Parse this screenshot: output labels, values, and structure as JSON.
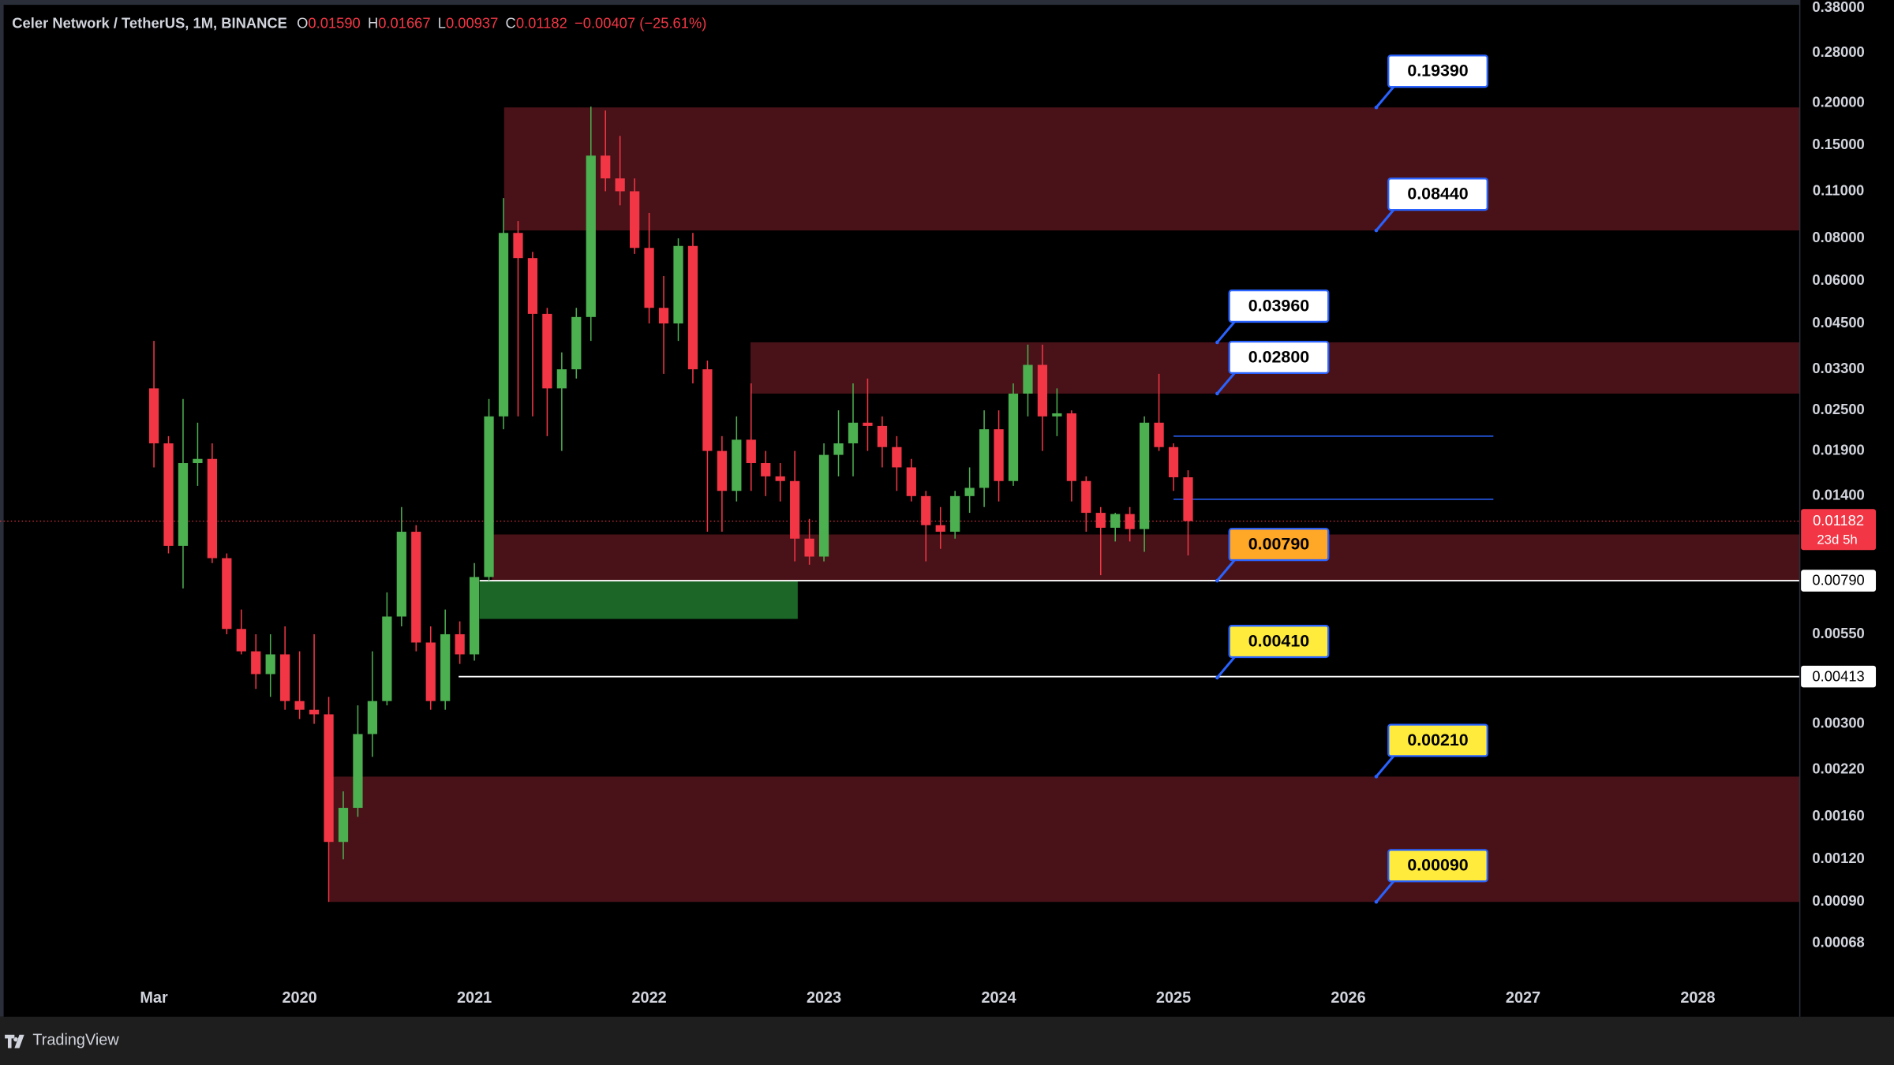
{
  "chart_data": {
    "type": "candlestick",
    "title": "Celer Network / TetherUS, 1M, BINANCE",
    "ohlc_header": [
      {
        "key": "O",
        "value": "0.01590"
      },
      {
        "key": "H",
        "value": "0.01667"
      },
      {
        "key": "L",
        "value": "0.00937"
      },
      {
        "key": "C",
        "value": "0.01182"
      }
    ],
    "change": "−0.00407 (−25.61%)",
    "up_color": "#4caf50",
    "down_color": "#f23645",
    "x": [
      2019.1667,
      2019.25,
      2019.3333,
      2019.4167,
      2019.5,
      2019.5833,
      2019.6667,
      2019.75,
      2019.8333,
      2019.9167,
      2020.0,
      2020.0833,
      2020.1667,
      2020.25,
      2020.3333,
      2020.4167,
      2020.5,
      2020.5833,
      2020.6667,
      2020.75,
      2020.8333,
      2020.9167,
      2021.0,
      2021.0833,
      2021.1667,
      2021.25,
      2021.3333,
      2021.4167,
      2021.5,
      2021.5833,
      2021.6667,
      2021.75,
      2021.8333,
      2021.9167,
      2022.0,
      2022.0833,
      2022.1667,
      2022.25,
      2022.3333,
      2022.4167,
      2022.5,
      2022.5833,
      2022.6667,
      2022.75,
      2022.8333,
      2022.9167,
      2023.0,
      2023.0833,
      2023.1667,
      2023.25,
      2023.3333,
      2023.4167,
      2023.5,
      2023.5833,
      2023.6667,
      2023.75,
      2023.8333,
      2023.9167,
      2024.0,
      2024.0833,
      2024.1667,
      2024.25,
      2024.3333,
      2024.4167,
      2024.5,
      2024.5833,
      2024.6667,
      2024.75,
      2024.8333,
      2024.9167,
      2025.0,
      2025.0833
    ],
    "open": [
      0.029,
      0.02,
      0.01,
      0.0175,
      0.018,
      0.0092,
      0.0057,
      0.0049,
      0.0042,
      0.0048,
      0.0035,
      0.0033,
      0.0032,
      0.00135,
      0.0017,
      0.0028,
      0.0035,
      0.0062,
      0.011,
      0.0052,
      0.0035,
      0.0055,
      0.0048,
      0.0081,
      0.024,
      0.083,
      0.07,
      0.048,
      0.029,
      0.033,
      0.047,
      0.14,
      0.12,
      0.11,
      0.075,
      0.05,
      0.045,
      0.076,
      0.033,
      0.019,
      0.0145,
      0.0205,
      0.0175,
      0.016,
      0.0155,
      0.0105,
      0.0093,
      0.0185,
      0.02,
      0.023,
      0.0225,
      0.0195,
      0.017,
      0.014,
      0.0115,
      0.011,
      0.014,
      0.0148,
      0.022,
      0.0155,
      0.028,
      0.034,
      0.024,
      0.0245,
      0.0155,
      0.0125,
      0.0113,
      0.0124,
      0.0112,
      0.023,
      0.0195,
      0.0159
    ],
    "high": [
      0.04,
      0.021,
      0.027,
      0.023,
      0.02,
      0.0095,
      0.0065,
      0.0055,
      0.0055,
      0.0058,
      0.0049,
      0.0055,
      0.0036,
      0.0019,
      0.0034,
      0.0049,
      0.0073,
      0.013,
      0.0115,
      0.0058,
      0.0065,
      0.006,
      0.0089,
      0.027,
      0.105,
      0.09,
      0.073,
      0.05,
      0.037,
      0.05,
      0.195,
      0.19,
      0.16,
      0.12,
      0.095,
      0.062,
      0.08,
      0.083,
      0.035,
      0.021,
      0.024,
      0.03,
      0.019,
      0.0175,
      0.019,
      0.012,
      0.02,
      0.025,
      0.03,
      0.031,
      0.024,
      0.021,
      0.018,
      0.0145,
      0.013,
      0.0145,
      0.017,
      0.025,
      0.025,
      0.03,
      0.039,
      0.039,
      0.029,
      0.025,
      0.016,
      0.013,
      0.0125,
      0.013,
      0.024,
      0.032,
      0.02,
      0.01667
    ],
    "low": [
      0.017,
      0.0095,
      0.0075,
      0.015,
      0.0089,
      0.0055,
      0.0048,
      0.0038,
      0.0036,
      0.0033,
      0.0031,
      0.003,
      0.0009,
      0.0012,
      0.0016,
      0.0024,
      0.0034,
      0.0058,
      0.0049,
      0.0033,
      0.0033,
      0.0045,
      0.0046,
      0.0079,
      0.022,
      0.024,
      0.024,
      0.021,
      0.019,
      0.031,
      0.04,
      0.11,
      0.1,
      0.072,
      0.045,
      0.032,
      0.04,
      0.03,
      0.011,
      0.011,
      0.0135,
      0.0145,
      0.014,
      0.0135,
      0.009,
      0.0088,
      0.009,
      0.016,
      0.016,
      0.019,
      0.017,
      0.0145,
      0.0135,
      0.009,
      0.0098,
      0.0105,
      0.0125,
      0.013,
      0.0135,
      0.015,
      0.024,
      0.019,
      0.021,
      0.0135,
      0.011,
      0.0082,
      0.0103,
      0.0103,
      0.0096,
      0.019,
      0.0145,
      0.00937
    ],
    "close": [
      0.02,
      0.01,
      0.0175,
      0.018,
      0.0092,
      0.0057,
      0.0049,
      0.0042,
      0.0048,
      0.0035,
      0.0033,
      0.0032,
      0.00135,
      0.0017,
      0.0028,
      0.0035,
      0.0062,
      0.011,
      0.0052,
      0.0035,
      0.0055,
      0.0048,
      0.0081,
      0.024,
      0.083,
      0.07,
      0.048,
      0.029,
      0.033,
      0.047,
      0.14,
      0.12,
      0.11,
      0.075,
      0.05,
      0.045,
      0.076,
      0.033,
      0.019,
      0.0145,
      0.0205,
      0.0175,
      0.016,
      0.0155,
      0.0105,
      0.0093,
      0.0185,
      0.02,
      0.023,
      0.0225,
      0.0195,
      0.017,
      0.014,
      0.0115,
      0.011,
      0.014,
      0.0148,
      0.022,
      0.0155,
      0.028,
      0.034,
      0.024,
      0.0245,
      0.0155,
      0.0125,
      0.0113,
      0.0124,
      0.0112,
      0.023,
      0.0195,
      0.0159,
      0.01182
    ],
    "log_scale": true,
    "xlim": [
      2018.286,
      2028.583
    ],
    "ylim": [
      0.000414,
      0.385
    ],
    "xticks": [
      {
        "value": 2019.1667,
        "label": "Mar"
      },
      2020,
      2021,
      2022,
      2023,
      2024,
      2025,
      2026,
      2027,
      2028
    ],
    "yticks": [
      {
        "value": 0.38,
        "label": "0.38000"
      },
      {
        "value": 0.28,
        "label": "0.28000"
      },
      {
        "value": 0.2,
        "label": "0.20000"
      },
      {
        "value": 0.15,
        "label": "0.15000"
      },
      {
        "value": 0.11,
        "label": "0.11000"
      },
      {
        "value": 0.08,
        "label": "0.08000"
      },
      {
        "value": 0.06,
        "label": "0.06000"
      },
      {
        "value": 0.045,
        "label": "0.04500"
      },
      {
        "value": 0.033,
        "label": "0.03300"
      },
      {
        "value": 0.025,
        "label": "0.02500"
      },
      {
        "value": 0.019,
        "label": "0.01900"
      },
      {
        "value": 0.014,
        "label": "0.01400"
      },
      {
        "value": 0.0055,
        "label": "0.00550"
      },
      {
        "value": 0.003,
        "label": "0.00300"
      },
      {
        "value": 0.0022,
        "label": "0.00220"
      },
      {
        "value": 0.0016,
        "label": "0.00160"
      },
      {
        "value": 0.0012,
        "label": "0.00120"
      },
      {
        "value": 0.0009,
        "label": "0.00090"
      },
      {
        "value": 0.00068,
        "label": "0.00068"
      }
    ],
    "zones": [
      {
        "low": 0.0844,
        "high": 0.1939,
        "x0": 2021.17,
        "color": "#4d1319"
      },
      {
        "low": 0.028,
        "high": 0.0396,
        "x0": 2022.58,
        "color": "#4d1319"
      },
      {
        "low": 0.0079,
        "high": 0.0108,
        "x0": 2021.1,
        "color": "#4d1319"
      },
      {
        "low": 0.0061,
        "high": 0.0079,
        "x0": 2021.03,
        "x1": 2022.85,
        "color": "#1e6b2a"
      },
      {
        "low": 0.0009,
        "high": 0.0021,
        "x0": 2020.17,
        "color": "#4d1319"
      }
    ],
    "callouts": [
      {
        "value": 0.1939,
        "label": "0.19390",
        "x": 2026.16,
        "color": "#ffffff"
      },
      {
        "value": 0.0844,
        "label": "0.08440",
        "x": 2026.16,
        "color": "#ffffff"
      },
      {
        "value": 0.0396,
        "label": "0.03960",
        "x": 2025.25,
        "color": "#ffffff"
      },
      {
        "value": 0.028,
        "label": "0.02800",
        "x": 2025.25,
        "color": "#ffffff"
      },
      {
        "value": 0.0079,
        "label": "0.00790",
        "x": 2025.25,
        "color": "#ffa726"
      },
      {
        "value": 0.0041,
        "label": "0.00410",
        "x": 2025.25,
        "color": "#ffeb3b"
      },
      {
        "value": 0.0021,
        "label": "0.00210",
        "x": 2026.16,
        "color": "#ffeb3b"
      },
      {
        "value": 0.0009,
        "label": "0.00090",
        "x": 2026.16,
        "color": "#ffeb3b"
      }
    ],
    "levels": [
      {
        "value": 0.0079,
        "label": "0.00790",
        "x0": 2021.03,
        "color": "#ffffff"
      },
      {
        "value": 0.00413,
        "label": "0.00413",
        "x0": 2020.91,
        "color": "#ffffff"
      }
    ],
    "range_lines": [
      {
        "value": 0.021,
        "x0": 2025.0,
        "x1": 2026.83,
        "color": "#2962ff"
      },
      {
        "value": 0.0137,
        "x0": 2025.0,
        "x1": 2026.83,
        "color": "#2962ff"
      }
    ],
    "last_price": {
      "value": 0.01182,
      "label": "0.01182",
      "countdown": "23d 5h",
      "color": "#f23645"
    },
    "footer": "TradingView"
  }
}
